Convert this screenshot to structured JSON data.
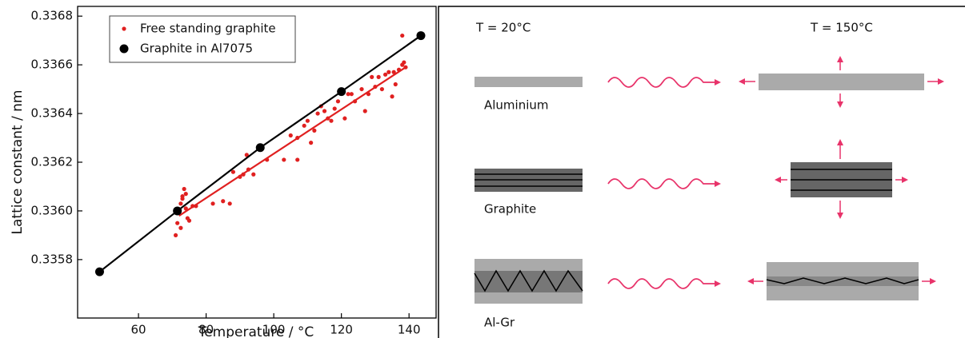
{
  "chart_data": {
    "type": "scatter",
    "xlabel": "Temperature  /  °C",
    "ylabel": "Lattice constant  /  nm",
    "xlim": [
      42,
      148
    ],
    "xticks": [
      60,
      80,
      100,
      120,
      140
    ],
    "ylim": [
      0.33556,
      0.33684
    ],
    "yticks": [
      0.3358,
      {
        "value": 0.336,
        "label": "0.3360"
      },
      0.3362,
      0.3364,
      0.3366,
      0.3368
    ],
    "legend": "upper left",
    "series": [
      {
        "name": "Free standing graphite",
        "color": "#e02020",
        "x": [
          71,
          71.5,
          72,
          72.5,
          73,
          73.5,
          74,
          72.5,
          74.5,
          75,
          73,
          76,
          77,
          74,
          82,
          85,
          87,
          88,
          90,
          91,
          92,
          92.5,
          94,
          98,
          103,
          105,
          107,
          107,
          109,
          110,
          111,
          112,
          113,
          114,
          115,
          116,
          117,
          118,
          119,
          120,
          121,
          122,
          123,
          124,
          126,
          127,
          128,
          129,
          130,
          131,
          132,
          133,
          134,
          135,
          135.5,
          136,
          137,
          138,
          138.5,
          138,
          139
        ],
        "values": [
          0.3359,
          0.33595,
          0.336,
          0.33603,
          0.33606,
          0.33609,
          0.33607,
          0.33593,
          0.33597,
          0.33596,
          0.33605,
          0.33602,
          0.33602,
          0.33601,
          0.33603,
          0.33604,
          0.33603,
          0.33616,
          0.33614,
          0.33615,
          0.33623,
          0.33617,
          0.33615,
          0.33621,
          0.33621,
          0.33631,
          0.33621,
          0.3363,
          0.33635,
          0.33637,
          0.33628,
          0.33633,
          0.3364,
          0.33643,
          0.33641,
          0.33638,
          0.33637,
          0.33642,
          0.33645,
          0.33649,
          0.33638,
          0.33648,
          0.33648,
          0.33645,
          0.3365,
          0.33641,
          0.33648,
          0.33655,
          0.33651,
          0.33655,
          0.3365,
          0.33656,
          0.33657,
          0.33647,
          0.33657,
          0.33652,
          0.33658,
          0.3366,
          0.33661,
          0.33672,
          0.33659
        ],
        "trend": {
          "x": [
            72,
            139
          ],
          "values": [
            0.33598,
            0.33659
          ]
        }
      },
      {
        "name": "Graphite in Al7075",
        "color": "#000000",
        "x": [
          48.5,
          71.5,
          96,
          120,
          143.5
        ],
        "values": [
          0.33575,
          0.336,
          0.33626,
          0.33649,
          0.33672
        ]
      }
    ]
  },
  "diagram": {
    "headers": [
      "T = 20°C",
      "T = 150°C"
    ],
    "rows": [
      {
        "label": "Aluminium"
      },
      {
        "label": "Graphite"
      },
      {
        "label": "Al-Gr"
      }
    ]
  }
}
